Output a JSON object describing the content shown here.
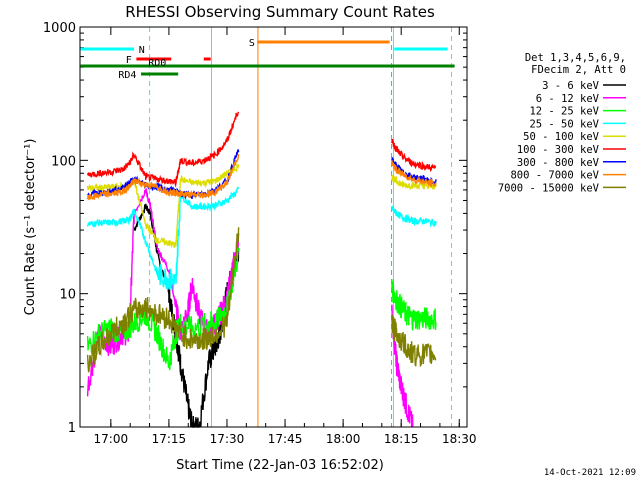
{
  "chart_data": {
    "type": "line",
    "title": "RHESSI Observing Summary Count Rates",
    "xlabel": "Start Time (22-Jan-03 16:52:02)",
    "ylabel": "Count Rate (s⁻¹ detector⁻¹)",
    "yscale": "log",
    "ylim": [
      1,
      1000
    ],
    "xlim": [
      "16:52:02",
      "18:32:00"
    ],
    "x_ticks": [
      "17:00",
      "17:15",
      "17:30",
      "17:45",
      "18:00",
      "18:15",
      "18:30"
    ],
    "y_ticks": [
      "1",
      "10",
      "100",
      "1000"
    ],
    "grid": false,
    "legend_position": "right",
    "legend_header": [
      "Det 1,3,4,5,6,9,",
      "FDecim 2, Att 0"
    ],
    "footer": "14-Oct-2021 12:09",
    "segments": [
      {
        "start": "16:52:02",
        "end": "17:10:00"
      },
      {
        "start": "17:10:00",
        "end": "17:26:00"
      },
      {
        "start": "17:26:00",
        "end": "17:38:00"
      },
      {
        "start": "18:12:30",
        "end": "18:28:00"
      }
    ],
    "series": [
      {
        "name": "3 - 6 keV",
        "color": "#000000",
        "values": [
          [
            16.0,
            null
          ],
          [
            17.08,
            null
          ],
          [
            17.1,
            30
          ],
          [
            17.15,
            45
          ],
          [
            17.17,
            40
          ],
          [
            17.2,
            20
          ],
          [
            17.25,
            10
          ],
          [
            17.28,
            5
          ],
          [
            17.3,
            3
          ],
          [
            17.33,
            1.5
          ],
          [
            17.35,
            1
          ],
          [
            17.38,
            1
          ],
          [
            17.42,
            3
          ],
          [
            17.45,
            4
          ],
          [
            17.47,
            5
          ],
          [
            17.49,
            8
          ],
          [
            17.5,
            10
          ],
          [
            17.52,
            14
          ],
          [
            17.55,
            20
          ],
          [
            17.6,
            null
          ]
        ]
      },
      {
        "name": "6 - 12 keV",
        "color": "#ff00ff",
        "values": [
          [
            16.9,
            2
          ],
          [
            16.95,
            5
          ],
          [
            17.0,
            4
          ],
          [
            17.05,
            5
          ],
          [
            17.08,
            5
          ],
          [
            17.1,
            40
          ],
          [
            17.15,
            60
          ],
          [
            17.17,
            45
          ],
          [
            17.2,
            22
          ],
          [
            17.25,
            15
          ],
          [
            17.28,
            8
          ],
          [
            17.3,
            5
          ],
          [
            17.33,
            7
          ],
          [
            17.35,
            12
          ],
          [
            17.38,
            7
          ],
          [
            17.42,
            5
          ],
          [
            17.45,
            6
          ],
          [
            17.47,
            7
          ],
          [
            17.5,
            9
          ],
          [
            17.52,
            14
          ],
          [
            17.55,
            25
          ],
          [
            17.58,
            null
          ],
          [
            18.21,
            7
          ],
          [
            18.23,
            3
          ],
          [
            18.25,
            2
          ],
          [
            18.27,
            1.5
          ],
          [
            18.3,
            1
          ]
        ]
      },
      {
        "name": "12 - 25 keV",
        "color": "#00ff00",
        "values": [
          [
            16.9,
            4
          ],
          [
            16.95,
            5
          ],
          [
            17.0,
            5.5
          ],
          [
            17.05,
            5
          ],
          [
            17.1,
            6
          ],
          [
            17.15,
            7
          ],
          [
            17.2,
            5
          ],
          [
            17.25,
            3
          ],
          [
            17.28,
            5
          ],
          [
            17.3,
            6
          ],
          [
            17.35,
            5.5
          ],
          [
            17.42,
            6
          ],
          [
            17.45,
            6
          ],
          [
            17.5,
            8
          ],
          [
            17.55,
            20
          ],
          [
            17.6,
            null
          ],
          [
            18.21,
            11
          ],
          [
            18.23,
            9
          ],
          [
            18.27,
            7
          ],
          [
            18.3,
            6.5
          ],
          [
            18.35,
            6.5
          ],
          [
            18.4,
            6.5
          ]
        ]
      },
      {
        "name": "25 - 50 keV",
        "color": "#00ffff",
        "values": [
          [
            16.9,
            33
          ],
          [
            16.95,
            34
          ],
          [
            17.0,
            34
          ],
          [
            17.05,
            35
          ],
          [
            17.08,
            36
          ],
          [
            17.1,
            42
          ],
          [
            17.15,
            25
          ],
          [
            17.2,
            14
          ],
          [
            17.25,
            13
          ],
          [
            17.28,
            12
          ],
          [
            17.3,
            55
          ],
          [
            17.35,
            45
          ],
          [
            17.4,
            45
          ],
          [
            17.45,
            46
          ],
          [
            17.5,
            50
          ],
          [
            17.55,
            60
          ],
          [
            17.6,
            null
          ],
          [
            18.21,
            44
          ],
          [
            18.23,
            40
          ],
          [
            18.26,
            37
          ],
          [
            18.3,
            35
          ],
          [
            18.35,
            35
          ],
          [
            18.4,
            34
          ]
        ]
      },
      {
        "name": "50 - 100 keV",
        "color": "#dddd00",
        "values": [
          [
            16.9,
            62
          ],
          [
            16.95,
            62
          ],
          [
            17.0,
            63
          ],
          [
            17.05,
            64
          ],
          [
            17.08,
            65
          ],
          [
            17.1,
            70
          ],
          [
            17.15,
            33
          ],
          [
            17.2,
            25
          ],
          [
            17.25,
            24
          ],
          [
            17.28,
            23
          ],
          [
            17.3,
            72
          ],
          [
            17.35,
            68
          ],
          [
            17.4,
            68
          ],
          [
            17.45,
            70
          ],
          [
            17.5,
            80
          ],
          [
            17.55,
            90
          ],
          [
            17.6,
            null
          ],
          [
            18.21,
            75
          ],
          [
            18.23,
            70
          ],
          [
            18.26,
            65
          ],
          [
            18.3,
            65
          ],
          [
            18.35,
            64
          ],
          [
            18.4,
            64
          ]
        ]
      },
      {
        "name": "100 - 300 keV",
        "color": "#ff0000",
        "values": [
          [
            16.9,
            78
          ],
          [
            16.95,
            80
          ],
          [
            17.0,
            82
          ],
          [
            17.05,
            85
          ],
          [
            17.08,
            95
          ],
          [
            17.1,
            110
          ],
          [
            17.15,
            75
          ],
          [
            17.2,
            72
          ],
          [
            17.25,
            70
          ],
          [
            17.28,
            68
          ],
          [
            17.3,
            100
          ],
          [
            17.35,
            95
          ],
          [
            17.4,
            100
          ],
          [
            17.45,
            110
          ],
          [
            17.5,
            140
          ],
          [
            17.55,
            240
          ],
          [
            17.6,
            null
          ],
          [
            18.21,
            140
          ],
          [
            18.23,
            120
          ],
          [
            18.26,
            105
          ],
          [
            18.3,
            95
          ],
          [
            18.35,
            90
          ],
          [
            18.4,
            87
          ]
        ]
      },
      {
        "name": "300 - 800 keV",
        "color": "#0000ff",
        "values": [
          [
            16.9,
            55
          ],
          [
            16.95,
            57
          ],
          [
            17.0,
            58
          ],
          [
            17.05,
            62
          ],
          [
            17.08,
            68
          ],
          [
            17.1,
            72
          ],
          [
            17.15,
            65
          ],
          [
            17.2,
            63
          ],
          [
            17.25,
            60
          ],
          [
            17.28,
            58
          ],
          [
            17.3,
            56
          ],
          [
            17.35,
            55
          ],
          [
            17.4,
            56
          ],
          [
            17.45,
            60
          ],
          [
            17.5,
            70
          ],
          [
            17.55,
            120
          ],
          [
            17.6,
            null
          ],
          [
            18.21,
            100
          ],
          [
            18.23,
            90
          ],
          [
            18.26,
            80
          ],
          [
            18.3,
            75
          ],
          [
            18.35,
            72
          ],
          [
            18.4,
            68
          ]
        ]
      },
      {
        "name": "800 - 7000 keV",
        "color": "#ff8000",
        "values": [
          [
            16.9,
            52
          ],
          [
            16.95,
            55
          ],
          [
            17.0,
            56
          ],
          [
            17.05,
            58
          ],
          [
            17.08,
            64
          ],
          [
            17.1,
            70
          ],
          [
            17.15,
            66
          ],
          [
            17.2,
            63
          ],
          [
            17.25,
            58
          ],
          [
            17.28,
            57
          ],
          [
            17.3,
            56
          ],
          [
            17.35,
            55
          ],
          [
            17.4,
            55
          ],
          [
            17.45,
            58
          ],
          [
            17.5,
            68
          ],
          [
            17.55,
            110
          ],
          [
            17.6,
            null
          ],
          [
            18.21,
            95
          ],
          [
            18.23,
            85
          ],
          [
            18.26,
            78
          ],
          [
            18.3,
            72
          ],
          [
            18.35,
            69
          ],
          [
            18.4,
            66
          ]
        ]
      },
      {
        "name": "7000 - 15000 keV",
        "color": "#808000",
        "values": [
          [
            16.9,
            3
          ],
          [
            16.95,
            4
          ],
          [
            17.0,
            5
          ],
          [
            17.05,
            6
          ],
          [
            17.1,
            7.5
          ],
          [
            17.15,
            8
          ],
          [
            17.2,
            7
          ],
          [
            17.25,
            6.5
          ],
          [
            17.3,
            5
          ],
          [
            17.35,
            4.5
          ],
          [
            17.4,
            4.5
          ],
          [
            17.45,
            5
          ],
          [
            17.5,
            6
          ],
          [
            17.55,
            30
          ],
          [
            17.6,
            null
          ],
          [
            18.21,
            6
          ],
          [
            18.23,
            5
          ],
          [
            18.27,
            4
          ],
          [
            18.3,
            3.5
          ],
          [
            18.35,
            3.5
          ],
          [
            18.4,
            3.5
          ]
        ]
      }
    ],
    "flags": [
      {
        "label": "N",
        "color": "#00ffff"
      },
      {
        "label": "F",
        "color": "#ff0000"
      },
      {
        "label": "S",
        "color": "#ff8000"
      },
      {
        "label": "RD0",
        "color": "#008000"
      },
      {
        "label": "RD4",
        "color": "#008000"
      }
    ],
    "vlines": [
      {
        "time": "17:10:00",
        "color": "#00ffff",
        "style": "dashed"
      },
      {
        "time": "17:26:00",
        "color": "#00ffff",
        "style": "solid"
      },
      {
        "time": "17:38:00",
        "color": "#ff8000",
        "style": "solid"
      },
      {
        "time": "18:12:30",
        "color": "#ff8000",
        "style": "dashed"
      },
      {
        "time": "18:13:00",
        "color": "#00ffff",
        "style": "solid"
      },
      {
        "time": "18:28:00",
        "color": "#00ffff",
        "style": "dashed"
      }
    ]
  }
}
